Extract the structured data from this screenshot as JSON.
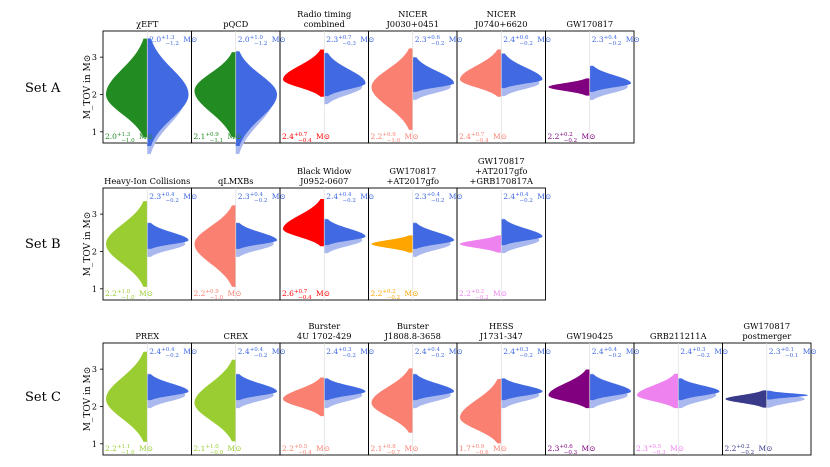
{
  "figure": {
    "ylabel": "M_TOV in M⊙",
    "yticks": [
      1,
      2,
      3
    ],
    "ylim": [
      0.7,
      3.7
    ]
  },
  "colors": {
    "blue": "#4169e1",
    "lightblue": "#a9b8ee",
    "green": "#228b22",
    "red": "#ff0000",
    "salmon": "#fa8072",
    "purple": "#800080",
    "yellowgreen": "#9acd32",
    "orange": "#ffa500",
    "violet": "#ee82ee",
    "darkslateblue": "#3a3a8a"
  },
  "chart_data": [
    {
      "set": "Set A",
      "type": "violin",
      "panels": [
        {
          "title": [
            "χEFT"
          ],
          "color": "green",
          "left": {
            "median": 2.0,
            "plus": 1.3,
            "minus": 1.0
          },
          "right": {
            "median": 2.0,
            "plus": 1.3,
            "minus": 1.2
          }
        },
        {
          "title": [
            "pQCD"
          ],
          "color": "green",
          "left": {
            "median": 2.1,
            "plus": 0.9,
            "minus": 1.1
          },
          "right": {
            "median": 2.0,
            "plus": 1.0,
            "minus": 1.2
          }
        },
        {
          "title": [
            "Radio timing",
            "combined"
          ],
          "color": "red",
          "left": {
            "median": 2.4,
            "plus": 0.7,
            "minus": 0.4
          },
          "right": {
            "median": 2.3,
            "plus": 0.7,
            "minus": 0.3
          }
        },
        {
          "title": [
            "NICER",
            "J0030+0451"
          ],
          "color": "salmon",
          "left": {
            "median": 2.2,
            "plus": 0.9,
            "minus": 1.0
          },
          "right": {
            "median": 2.3,
            "plus": 0.6,
            "minus": 0.2
          }
        },
        {
          "title": [
            "NICER",
            "J0740+6620"
          ],
          "color": "salmon",
          "left": {
            "median": 2.4,
            "plus": 0.7,
            "minus": 0.4
          },
          "right": {
            "median": 2.4,
            "plus": 0.6,
            "minus": 0.2
          }
        },
        {
          "title": [
            "GW170817"
          ],
          "color": "purple",
          "left": {
            "median": 2.2,
            "plus": 0.2,
            "minus": 0.2
          },
          "right": {
            "median": 2.3,
            "plus": 0.4,
            "minus": 0.2
          }
        }
      ]
    },
    {
      "set": "Set B",
      "type": "violin",
      "panels": [
        {
          "title": [
            "Heavy-Ion Collisions"
          ],
          "color": "yellowgreen",
          "left": {
            "median": 2.2,
            "plus": 1.0,
            "minus": 1.0
          },
          "right": {
            "median": 2.3,
            "plus": 0.4,
            "minus": 0.2
          }
        },
        {
          "title": [
            "qLMXBs"
          ],
          "color": "salmon",
          "left": {
            "median": 2.2,
            "plus": 0.9,
            "minus": 1.0
          },
          "right": {
            "median": 2.3,
            "plus": 0.4,
            "minus": 0.2
          }
        },
        {
          "title": [
            "Black Widow",
            "J0952-0607"
          ],
          "color": "red",
          "left": {
            "median": 2.6,
            "plus": 0.7,
            "minus": 0.4
          },
          "right": {
            "median": 2.4,
            "plus": 0.4,
            "minus": 0.2
          }
        },
        {
          "title": [
            "GW170817",
            "+AT2017gfo"
          ],
          "color": "orange",
          "left": {
            "median": 2.2,
            "plus": 0.2,
            "minus": 0.2
          },
          "right": {
            "median": 2.3,
            "plus": 0.4,
            "minus": 0.2
          }
        },
        {
          "title": [
            "GW170817",
            "+AT2017gfo",
            "+GRB170817A"
          ],
          "color": "violet",
          "left": {
            "median": 2.2,
            "plus": 0.2,
            "minus": 0.2
          },
          "right": {
            "median": 2.4,
            "plus": 0.4,
            "minus": 0.2
          }
        }
      ]
    },
    {
      "set": "Set C",
      "type": "violin",
      "panels": [
        {
          "title": [
            "PREX"
          ],
          "color": "yellowgreen",
          "left": {
            "median": 2.2,
            "plus": 1.1,
            "minus": 1.0
          },
          "right": {
            "median": 2.4,
            "plus": 0.4,
            "minus": 0.2
          }
        },
        {
          "title": [
            "CREX"
          ],
          "color": "yellowgreen",
          "left": {
            "median": 2.1,
            "plus": 1.0,
            "minus": 0.9
          },
          "right": {
            "median": 2.4,
            "plus": 0.4,
            "minus": 0.2
          }
        },
        {
          "title": [
            "Burster",
            "4U 1702-429"
          ],
          "color": "salmon",
          "left": {
            "median": 2.2,
            "plus": 0.5,
            "minus": 0.4
          },
          "right": {
            "median": 2.4,
            "plus": 0.3,
            "minus": 0.2
          }
        },
        {
          "title": [
            "Burster",
            "J1808.8-3658"
          ],
          "color": "salmon",
          "left": {
            "median": 2.1,
            "plus": 0.8,
            "minus": 0.7
          },
          "right": {
            "median": 2.4,
            "plus": 0.4,
            "minus": 0.2
          }
        },
        {
          "title": [
            "HESS",
            "J1731-347"
          ],
          "color": "salmon",
          "left": {
            "median": 1.7,
            "plus": 0.9,
            "minus": 0.6
          },
          "right": {
            "median": 2.4,
            "plus": 0.3,
            "minus": 0.2
          }
        },
        {
          "title": [
            "GW190425"
          ],
          "color": "purple",
          "left": {
            "median": 2.3,
            "plus": 0.6,
            "minus": 0.3
          },
          "right": {
            "median": 2.4,
            "plus": 0.4,
            "minus": 0.2
          }
        },
        {
          "title": [
            "GRB211211A"
          ],
          "color": "violet",
          "left": {
            "median": 2.3,
            "plus": 0.5,
            "minus": 0.3
          },
          "right": {
            "median": 2.4,
            "plus": 0.3,
            "minus": 0.2
          }
        },
        {
          "title": [
            "GW170817",
            "postmerger"
          ],
          "color": "darkslateblue",
          "left": {
            "median": 2.2,
            "plus": 0.2,
            "minus": 0.2
          },
          "right": {
            "median": 2.3,
            "plus": 0.1,
            "minus": 0.1
          }
        }
      ]
    }
  ]
}
